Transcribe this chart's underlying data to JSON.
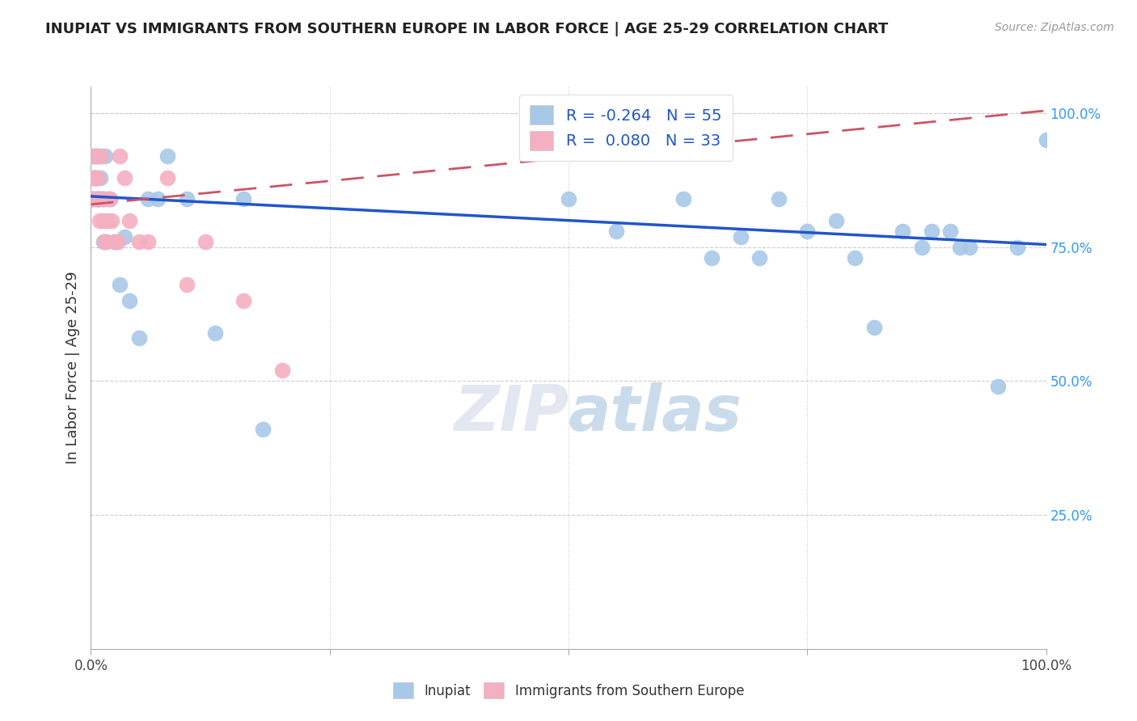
{
  "title": "INUPIAT VS IMMIGRANTS FROM SOUTHERN EUROPE IN LABOR FORCE | AGE 25-29 CORRELATION CHART",
  "source": "Source: ZipAtlas.com",
  "ylabel": "In Labor Force | Age 25-29",
  "xlim": [
    0,
    1
  ],
  "ylim": [
    0,
    1.05
  ],
  "x_tick_labels": [
    "0.0%",
    "",
    "",
    "",
    "100.0%"
  ],
  "x_tick_positions": [
    0.0,
    0.25,
    0.5,
    0.75,
    1.0
  ],
  "y_tick_labels_right": [
    "100.0%",
    "75.0%",
    "50.0%",
    "25.0%"
  ],
  "y_tick_positions_right": [
    1.0,
    0.75,
    0.5,
    0.25
  ],
  "legend_label1": "Inupiat",
  "legend_label2": "Immigrants from Southern Europe",
  "R1": "-0.264",
  "N1": "55",
  "R2": "0.080",
  "N2": "33",
  "inupiat_color": "#a8c8e8",
  "immigrant_color": "#f4afc0",
  "trendline1_color": "#2255cc",
  "trendline2_color": "#cc5566",
  "watermark_color": "#c5d8ed",
  "background_color": "#ffffff",
  "grid_color": "#cccccc",
  "trendline1_x0": 0.0,
  "trendline1_y0": 0.845,
  "trendline1_x1": 1.0,
  "trendline1_y1": 0.755,
  "trendline2_x0": 0.0,
  "trendline2_y0": 0.83,
  "trendline2_x1": 1.0,
  "trendline2_y1": 1.005,
  "inupiat_x": [
    0.001,
    0.002,
    0.003,
    0.003,
    0.004,
    0.004,
    0.005,
    0.005,
    0.005,
    0.006,
    0.006,
    0.007,
    0.007,
    0.008,
    0.008,
    0.009,
    0.01,
    0.01,
    0.012,
    0.013,
    0.015,
    0.016,
    0.02,
    0.025,
    0.03,
    0.035,
    0.04,
    0.05,
    0.06,
    0.07,
    0.08,
    0.1,
    0.13,
    0.16,
    0.18,
    0.5,
    0.55,
    0.62,
    0.65,
    0.68,
    0.7,
    0.72,
    0.75,
    0.78,
    0.8,
    0.82,
    0.85,
    0.87,
    0.88,
    0.9,
    0.91,
    0.92,
    0.95,
    0.97,
    1.0
  ],
  "inupiat_y": [
    0.84,
    0.92,
    0.84,
    0.88,
    0.92,
    0.88,
    0.84,
    0.88,
    0.92,
    0.84,
    0.88,
    0.84,
    0.92,
    0.84,
    0.92,
    0.84,
    0.88,
    0.92,
    0.84,
    0.76,
    0.92,
    0.76,
    0.84,
    0.76,
    0.68,
    0.77,
    0.65,
    0.58,
    0.84,
    0.84,
    0.92,
    0.84,
    0.59,
    0.84,
    0.41,
    0.84,
    0.78,
    0.84,
    0.73,
    0.77,
    0.73,
    0.84,
    0.78,
    0.8,
    0.73,
    0.6,
    0.78,
    0.75,
    0.78,
    0.78,
    0.75,
    0.75,
    0.49,
    0.75,
    0.95
  ],
  "immigrant_x": [
    0.001,
    0.002,
    0.003,
    0.004,
    0.005,
    0.005,
    0.006,
    0.007,
    0.008,
    0.009,
    0.01,
    0.011,
    0.012,
    0.013,
    0.014,
    0.015,
    0.016,
    0.017,
    0.018,
    0.02,
    0.022,
    0.025,
    0.028,
    0.03,
    0.035,
    0.04,
    0.05,
    0.06,
    0.08,
    0.1,
    0.12,
    0.16,
    0.2
  ],
  "immigrant_y": [
    0.84,
    0.84,
    0.88,
    0.88,
    0.92,
    0.88,
    0.84,
    0.88,
    0.84,
    0.8,
    0.84,
    0.92,
    0.84,
    0.8,
    0.76,
    0.84,
    0.76,
    0.8,
    0.84,
    0.84,
    0.8,
    0.76,
    0.76,
    0.92,
    0.88,
    0.8,
    0.76,
    0.76,
    0.88,
    0.68,
    0.76,
    0.65,
    0.52
  ]
}
